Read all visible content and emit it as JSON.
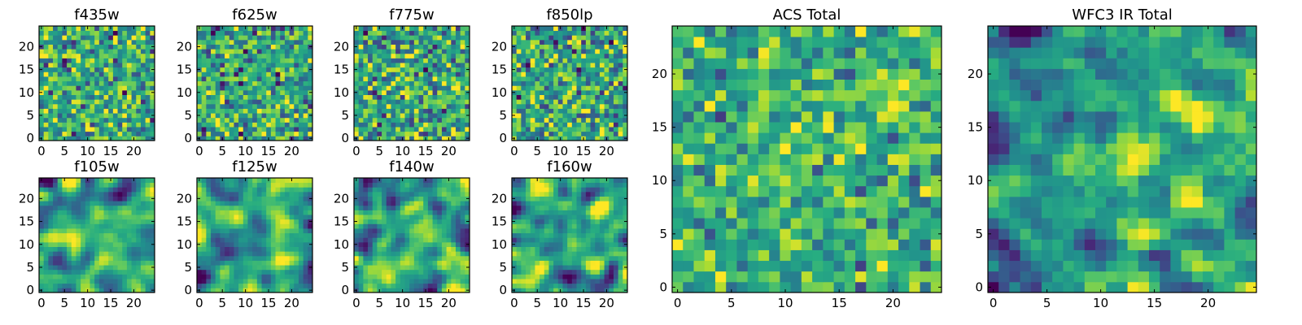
{
  "figure": {
    "colormap": "viridis",
    "colors": {
      "low": "#440154",
      "mid": "#21918c",
      "high": "#fde725",
      "frame": "#000000",
      "background": "#ffffff"
    }
  },
  "chart_data": [
    {
      "type": "heatmap",
      "title": "f435w",
      "grid": false,
      "xlim": [
        -0.5,
        24.5
      ],
      "ylim": [
        -0.5,
        24.5
      ],
      "xticks": [
        "0",
        "5",
        "10",
        "15",
        "20"
      ],
      "yticks": [
        "0",
        "5",
        "10",
        "15",
        "20"
      ],
      "seed": 11,
      "smooth": 0,
      "mean": 0.62,
      "spread": 0.22,
      "hot": []
    },
    {
      "type": "heatmap",
      "title": "f625w",
      "grid": false,
      "xlim": [
        -0.5,
        24.5
      ],
      "ylim": [
        -0.5,
        24.5
      ],
      "xticks": [
        "0",
        "5",
        "10",
        "15",
        "20"
      ],
      "yticks": [
        "0",
        "5",
        "10",
        "15",
        "20"
      ],
      "seed": 23,
      "smooth": 0,
      "mean": 0.6,
      "spread": 0.22,
      "hot": []
    },
    {
      "type": "heatmap",
      "title": "f775w",
      "grid": false,
      "xlim": [
        -0.5,
        24.5
      ],
      "ylim": [
        -0.5,
        24.5
      ],
      "xticks": [
        "0",
        "5",
        "10",
        "15",
        "20"
      ],
      "yticks": [
        "0",
        "5",
        "10",
        "15",
        "20"
      ],
      "seed": 37,
      "smooth": 0,
      "mean": 0.6,
      "spread": 0.23,
      "hot": []
    },
    {
      "type": "heatmap",
      "title": "f850lp",
      "grid": false,
      "xlim": [
        -0.5,
        24.5
      ],
      "ylim": [
        -0.5,
        24.5
      ],
      "xticks": [
        "0",
        "5",
        "10",
        "15",
        "20"
      ],
      "yticks": [
        "0",
        "5",
        "10",
        "15",
        "20"
      ],
      "seed": 51,
      "smooth": 0,
      "mean": 0.6,
      "spread": 0.23,
      "hot": []
    },
    {
      "type": "heatmap",
      "title": "f105w",
      "grid": false,
      "xlim": [
        -0.5,
        24.5
      ],
      "ylim": [
        -0.5,
        24.5
      ],
      "xticks": [
        "0",
        "5",
        "10",
        "15",
        "20"
      ],
      "yticks": [
        "0",
        "5",
        "10",
        "15",
        "20"
      ],
      "seed": 67,
      "smooth": 2,
      "mean": 0.58,
      "spread": 0.2,
      "hot": []
    },
    {
      "type": "heatmap",
      "title": "f125w",
      "grid": false,
      "xlim": [
        -0.5,
        24.5
      ],
      "ylim": [
        -0.5,
        24.5
      ],
      "xticks": [
        "0",
        "5",
        "10",
        "15",
        "20"
      ],
      "yticks": [
        "0",
        "5",
        "10",
        "15",
        "20"
      ],
      "seed": 79,
      "smooth": 2,
      "mean": 0.58,
      "spread": 0.2,
      "hot": []
    },
    {
      "type": "heatmap",
      "title": "f140w",
      "grid": false,
      "xlim": [
        -0.5,
        24.5
      ],
      "ylim": [
        -0.5,
        24.5
      ],
      "xticks": [
        "0",
        "5",
        "10",
        "15",
        "20"
      ],
      "yticks": [
        "0",
        "5",
        "10",
        "15",
        "20"
      ],
      "seed": 91,
      "smooth": 2,
      "mean": 0.58,
      "spread": 0.21,
      "hot": []
    },
    {
      "type": "heatmap",
      "title": "f160w",
      "grid": false,
      "xlim": [
        -0.5,
        24.5
      ],
      "ylim": [
        -0.5,
        24.5
      ],
      "xticks": [
        "0",
        "5",
        "10",
        "15",
        "20"
      ],
      "yticks": [
        "0",
        "5",
        "10",
        "15",
        "20"
      ],
      "seed": 103,
      "smooth": 2,
      "mean": 0.58,
      "spread": 0.21,
      "hot": []
    },
    {
      "type": "heatmap",
      "title": "ACS Total",
      "grid": false,
      "xlim": [
        -0.5,
        24.5
      ],
      "ylim": [
        -0.5,
        24.5
      ],
      "xticks": [
        "0",
        "5",
        "10",
        "15",
        "20"
      ],
      "yticks": [
        "0",
        "5",
        "10",
        "15",
        "20"
      ],
      "seed": 131,
      "smooth": 0,
      "mean": 0.64,
      "spread": 0.17,
      "hot": [
        [
          11,
          13,
          0.2
        ],
        [
          20,
          17,
          0.2
        ]
      ]
    },
    {
      "type": "heatmap",
      "title": "WFC3 IR Total",
      "grid": false,
      "xlim": [
        -0.5,
        24.5
      ],
      "ylim": [
        -0.5,
        24.5
      ],
      "xticks": [
        "0",
        "5",
        "10",
        "15",
        "20"
      ],
      "yticks": [
        "0",
        "5",
        "10",
        "15",
        "20"
      ],
      "seed": 157,
      "smooth": 1,
      "mean": 0.56,
      "spread": 0.16,
      "hot": [
        [
          19,
          17,
          0.32
        ],
        [
          12,
          13,
          0.22
        ],
        [
          24,
          6,
          -0.45
        ],
        [
          1,
          1,
          -0.4
        ],
        [
          2,
          24,
          -0.4
        ]
      ]
    }
  ]
}
